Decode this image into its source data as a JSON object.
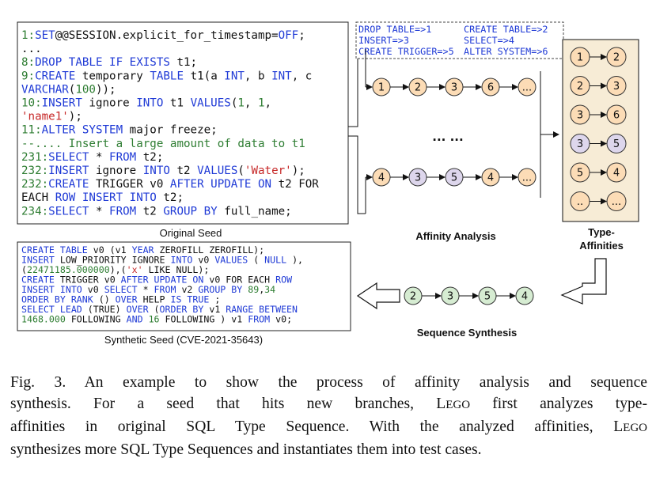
{
  "original_seed": {
    "lines": [
      [
        {
          "t": "1:",
          "c": "#2e7d32"
        },
        {
          "t": "SET",
          "c": "#1f3ad6"
        },
        {
          "t": "@@SESSION.explicit_for_timestamp=",
          "c": "#111"
        },
        {
          "t": "OFF",
          "c": "#1f3ad6"
        },
        {
          "t": ";",
          "c": "#111"
        }
      ],
      [
        {
          "t": "...",
          "c": "#111"
        }
      ],
      [
        {
          "t": "8:",
          "c": "#2e7d32"
        },
        {
          "t": "DROP TABLE IF EXISTS",
          "c": "#1f3ad6"
        },
        {
          "t": " t1;",
          "c": "#111"
        }
      ],
      [
        {
          "t": "9:",
          "c": "#2e7d32"
        },
        {
          "t": "CREATE",
          "c": "#1f3ad6"
        },
        {
          "t": " temporary ",
          "c": "#111"
        },
        {
          "t": "TABLE",
          "c": "#1f3ad6"
        },
        {
          "t": " t1(a ",
          "c": "#111"
        },
        {
          "t": "INT",
          "c": "#1f3ad6"
        },
        {
          "t": ", b ",
          "c": "#111"
        },
        {
          "t": "INT",
          "c": "#1f3ad6"
        },
        {
          "t": ", c",
          "c": "#111"
        }
      ],
      [
        {
          "t": "VARCHAR",
          "c": "#1f3ad6"
        },
        {
          "t": "(",
          "c": "#111"
        },
        {
          "t": "100",
          "c": "#2e7d32"
        },
        {
          "t": "));",
          "c": "#111"
        }
      ],
      [
        {
          "t": "10:",
          "c": "#2e7d32"
        },
        {
          "t": "INSERT",
          "c": "#1f3ad6"
        },
        {
          "t": " ignore ",
          "c": "#111"
        },
        {
          "t": "INTO",
          "c": "#1f3ad6"
        },
        {
          "t": " t1 ",
          "c": "#111"
        },
        {
          "t": "VALUES",
          "c": "#1f3ad6"
        },
        {
          "t": "(",
          "c": "#111"
        },
        {
          "t": "1",
          "c": "#2e7d32"
        },
        {
          "t": ", ",
          "c": "#111"
        },
        {
          "t": "1",
          "c": "#2e7d32"
        },
        {
          "t": ",",
          "c": "#111"
        }
      ],
      [
        {
          "t": "'name1'",
          "c": "#c62828"
        },
        {
          "t": ");",
          "c": "#111"
        }
      ],
      [
        {
          "t": "11:",
          "c": "#2e7d32"
        },
        {
          "t": "ALTER SYSTEM",
          "c": "#1f3ad6"
        },
        {
          "t": " major freeze;",
          "c": "#111"
        }
      ],
      [
        {
          "t": "--.... Insert a large amount of data to t1",
          "c": "#2e7d32"
        }
      ],
      [
        {
          "t": "231:",
          "c": "#2e7d32"
        },
        {
          "t": "SELECT",
          "c": "#1f3ad6"
        },
        {
          "t": " * ",
          "c": "#111"
        },
        {
          "t": "FROM",
          "c": "#1f3ad6"
        },
        {
          "t": " t2;",
          "c": "#111"
        }
      ],
      [
        {
          "t": "232:",
          "c": "#2e7d32"
        },
        {
          "t": "INSERT",
          "c": "#1f3ad6"
        },
        {
          "t": " ignore ",
          "c": "#111"
        },
        {
          "t": "INTO",
          "c": "#1f3ad6"
        },
        {
          "t": " t2 ",
          "c": "#111"
        },
        {
          "t": "VALUES",
          "c": "#1f3ad6"
        },
        {
          "t": "(",
          "c": "#111"
        },
        {
          "t": "'Water'",
          "c": "#c62828"
        },
        {
          "t": ");",
          "c": "#111"
        }
      ],
      [
        {
          "t": "232:",
          "c": "#2e7d32"
        },
        {
          "t": "CREATE",
          "c": "#1f3ad6"
        },
        {
          "t": " TRIGGER v0 ",
          "c": "#111"
        },
        {
          "t": "AFTER UPDATE ON",
          "c": "#1f3ad6"
        },
        {
          "t": " t2 FOR",
          "c": "#111"
        }
      ],
      [
        {
          "t": "EACH ",
          "c": "#111"
        },
        {
          "t": "ROW INSERT INTO",
          "c": "#1f3ad6"
        },
        {
          "t": " t2;",
          "c": "#111"
        }
      ],
      [
        {
          "t": "234:",
          "c": "#2e7d32"
        },
        {
          "t": "SELECT",
          "c": "#1f3ad6"
        },
        {
          "t": " * ",
          "c": "#111"
        },
        {
          "t": "FROM",
          "c": "#1f3ad6"
        },
        {
          "t": " t2 ",
          "c": "#111"
        },
        {
          "t": "GROUP BY",
          "c": "#1f3ad6"
        },
        {
          "t": " full_name;",
          "c": "#111"
        }
      ]
    ],
    "label": "Original Seed"
  },
  "type_legend": [
    {
      "text": "DROP TABLE=>1",
      "c": "#1f3ad6"
    },
    {
      "text": "CREATE TABLE=>2",
      "c": "#1f3ad6"
    },
    {
      "text": "INSERT=>3",
      "c": "#1f3ad6"
    },
    {
      "text": "SELECT=>4",
      "c": "#1f3ad6"
    },
    {
      "text": "CREATE TRIGGER=>5",
      "c": "#1f3ad6"
    },
    {
      "text": "ALTER SYSTEM=>6",
      "c": "#1f3ad6"
    }
  ],
  "affinity_analysis": {
    "seq1": [
      "1",
      "2",
      "3",
      "6",
      "..."
    ],
    "seq2": [
      "4",
      "3",
      "5",
      "4",
      "..."
    ],
    "dots": "...  ...",
    "label": "Affinity Analysis"
  },
  "type_affinities": {
    "pairs": [
      [
        "1",
        "2"
      ],
      [
        "2",
        "3"
      ],
      [
        "3",
        "6"
      ],
      [
        "3",
        "5"
      ],
      [
        "5",
        "4"
      ],
      [
        "..",
        "..."
      ]
    ],
    "label_line1": "Type-",
    "label_line2": "Affinities"
  },
  "sequence_synthesis": {
    "nodes": [
      "2",
      "3",
      "5",
      "4"
    ],
    "label": "Sequence Synthesis"
  },
  "synthetic_seed": {
    "lines": [
      [
        {
          "t": "CREATE TABLE",
          "c": "#1f3ad6"
        },
        {
          "t": " v0 (v1 ",
          "c": "#111"
        },
        {
          "t": "YEAR",
          "c": "#1f3ad6"
        },
        {
          "t": " ZEROFILL ZEROFILL);",
          "c": "#111"
        }
      ],
      [
        {
          "t": "INSERT",
          "c": "#1f3ad6"
        },
        {
          "t": " LOW_PRIORITY IGNORE ",
          "c": "#111"
        },
        {
          "t": "INTO",
          "c": "#1f3ad6"
        },
        {
          "t": " v0 ",
          "c": "#111"
        },
        {
          "t": "VALUES",
          "c": "#1f3ad6"
        },
        {
          "t": " ( ",
          "c": "#111"
        },
        {
          "t": "NULL",
          "c": "#1f3ad6"
        },
        {
          "t": " ),",
          "c": "#111"
        }
      ],
      [
        {
          "t": "(",
          "c": "#111"
        },
        {
          "t": "22471185.000000",
          "c": "#2e7d32"
        },
        {
          "t": "),(",
          "c": "#111"
        },
        {
          "t": "'x'",
          "c": "#c62828"
        },
        {
          "t": " LIKE NULL);",
          "c": "#111"
        }
      ],
      [
        {
          "t": "CREATE",
          "c": "#1f3ad6"
        },
        {
          "t": " TRIGGER v0 ",
          "c": "#111"
        },
        {
          "t": "AFTER UPDATE ON",
          "c": "#1f3ad6"
        },
        {
          "t": " v0 FOR EACH ",
          "c": "#111"
        },
        {
          "t": "ROW",
          "c": "#1f3ad6"
        }
      ],
      [
        {
          "t": "INSERT INTO",
          "c": "#1f3ad6"
        },
        {
          "t": " v0 ",
          "c": "#111"
        },
        {
          "t": "SELECT",
          "c": "#1f3ad6"
        },
        {
          "t": " * ",
          "c": "#111"
        },
        {
          "t": "FROM",
          "c": "#1f3ad6"
        },
        {
          "t": " v2 ",
          "c": "#111"
        },
        {
          "t": "GROUP BY",
          "c": "#1f3ad6"
        },
        {
          "t": " ",
          "c": "#111"
        },
        {
          "t": "89",
          "c": "#2e7d32"
        },
        {
          "t": ",",
          "c": "#111"
        },
        {
          "t": "34",
          "c": "#2e7d32"
        }
      ],
      [
        {
          "t": "ORDER BY RANK",
          "c": "#1f3ad6"
        },
        {
          "t": " () ",
          "c": "#111"
        },
        {
          "t": "OVER",
          "c": "#1f3ad6"
        },
        {
          "t": " HELP ",
          "c": "#111"
        },
        {
          "t": "IS TRUE",
          "c": "#1f3ad6"
        },
        {
          "t": " ;",
          "c": "#111"
        }
      ],
      [
        {
          "t": "SELECT LEAD",
          "c": "#1f3ad6"
        },
        {
          "t": " (TRUE) ",
          "c": "#111"
        },
        {
          "t": "OVER",
          "c": "#1f3ad6"
        },
        {
          "t": " (",
          "c": "#111"
        },
        {
          "t": "ORDER BY",
          "c": "#1f3ad6"
        },
        {
          "t": " v1 ",
          "c": "#111"
        },
        {
          "t": "RANGE BETWEEN",
          "c": "#1f3ad6"
        }
      ],
      [
        {
          "t": "1468.000",
          "c": "#2e7d32"
        },
        {
          "t": " FOLLOWING ",
          "c": "#111"
        },
        {
          "t": "AND",
          "c": "#1f3ad6"
        },
        {
          "t": " ",
          "c": "#111"
        },
        {
          "t": "16",
          "c": "#2e7d32"
        },
        {
          "t": " FOLLOWING ) v1 ",
          "c": "#111"
        },
        {
          "t": "FROM",
          "c": "#1f3ad6"
        },
        {
          "t": " v0;",
          "c": "#111"
        }
      ]
    ],
    "label": "Synthetic Seed (CVE-2021-35643)"
  },
  "colors": {
    "orange_fill": "#fcdcb6",
    "purple_fill": "#ddd6ec",
    "green_fill": "#d6ecd2",
    "affinity_panel": "#f7ecd6"
  },
  "caption": {
    "line1": "Fig. 3.  An example to show the process of affinity analysis and sequence",
    "line2_pre": "synthesis. For a seed that hits new branches, L",
    "line2_sc": "EGO",
    "line2_post": " first analyzes type-",
    "line3": "affinities in original SQL Type Sequence. With the analyzed affinities, L",
    "line3_sc": "EGO",
    "line4": "synthesizes more SQL Type Sequences and instantiates them into test cases."
  }
}
